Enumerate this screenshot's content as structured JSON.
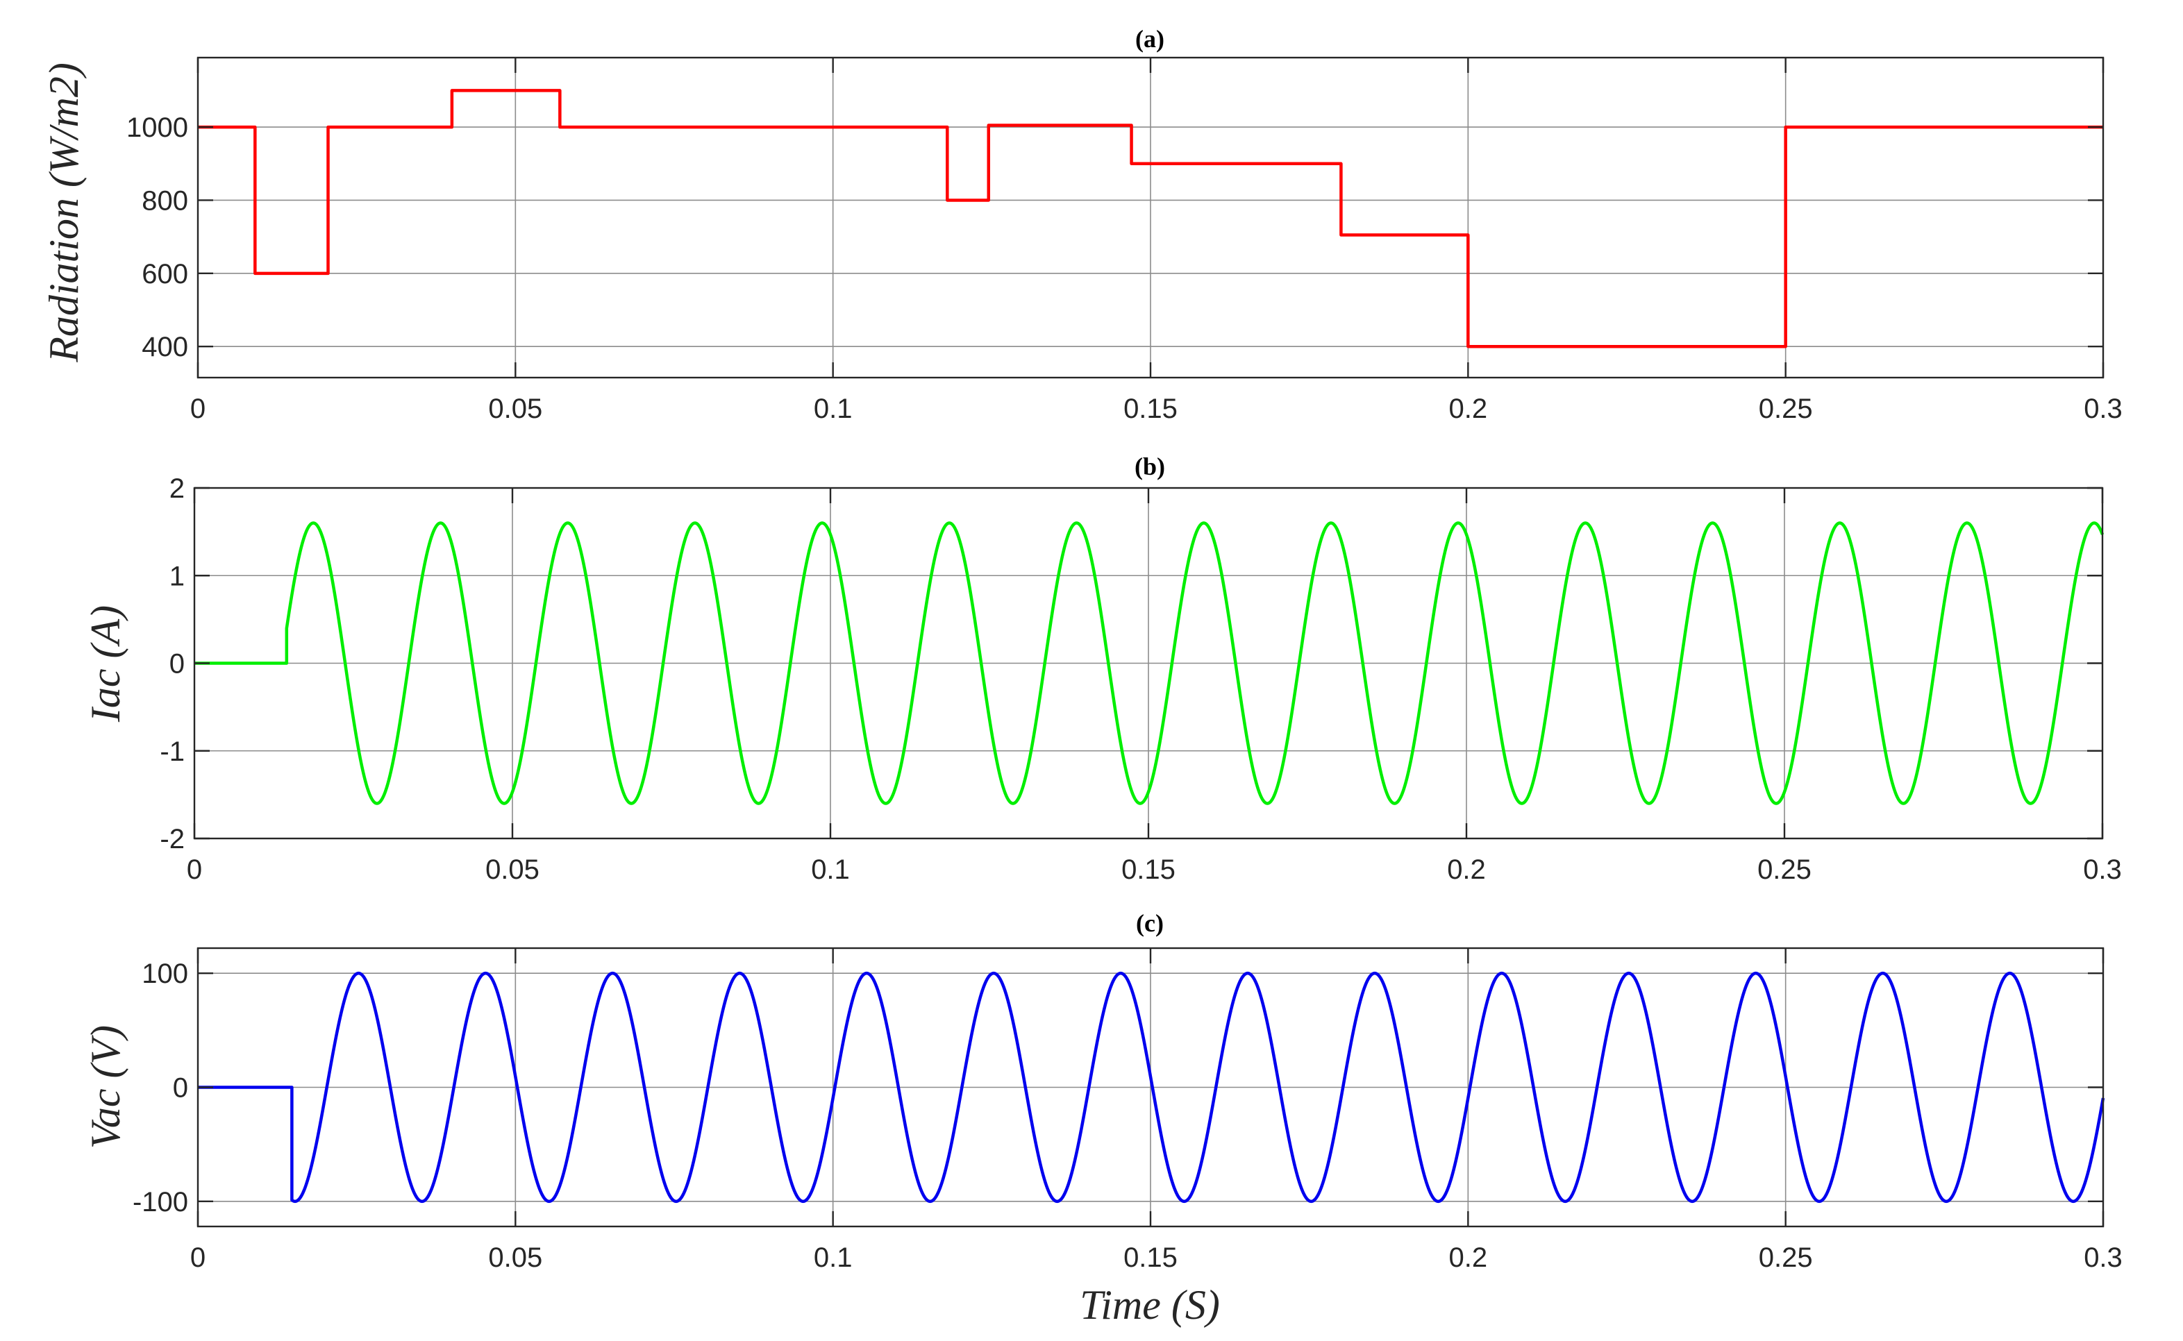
{
  "chart_data": [
    {
      "type": "line",
      "title": "(a)",
      "xlabel": "",
      "ylabel": "Radiation (W/m2)",
      "xlim": [
        0,
        0.3
      ],
      "ylim": [
        315,
        1190
      ],
      "xticks": [
        0,
        0.05,
        0.1,
        0.15,
        0.2,
        0.25,
        0.3
      ],
      "xtick_labels": [
        "0",
        "0.05",
        "0.1",
        "0.15",
        "0.2",
        "0.25",
        "0.3"
      ],
      "yticks": [
        400,
        600,
        800,
        1000
      ],
      "ytick_labels": [
        "400",
        "600",
        "800",
        "1000"
      ],
      "grid": true,
      "series": [
        {
          "name": "Radiation",
          "color": "#ff0000",
          "kind": "step",
          "points": [
            [
              0,
              1000
            ],
            [
              0.009,
              1000
            ],
            [
              0.009,
              600
            ],
            [
              0.0205,
              600
            ],
            [
              0.0205,
              1000
            ],
            [
              0.04,
              1000
            ],
            [
              0.04,
              1100
            ],
            [
              0.057,
              1100
            ],
            [
              0.057,
              1000
            ],
            [
              0.118,
              1000
            ],
            [
              0.118,
              800
            ],
            [
              0.1245,
              800
            ],
            [
              0.1245,
              1005
            ],
            [
              0.147,
              1005
            ],
            [
              0.147,
              900
            ],
            [
              0.18,
              900
            ],
            [
              0.18,
              705
            ],
            [
              0.2,
              705
            ],
            [
              0.2,
              400
            ],
            [
              0.25,
              400
            ],
            [
              0.25,
              1000
            ],
            [
              0.3,
              1000
            ]
          ]
        }
      ]
    },
    {
      "type": "line",
      "title": "(b)",
      "xlabel": "",
      "ylabel": "Iac (A)",
      "xlim": [
        0,
        0.3
      ],
      "ylim": [
        -2,
        2
      ],
      "xticks": [
        0,
        0.05,
        0.1,
        0.15,
        0.2,
        0.25,
        0.3
      ],
      "xtick_labels": [
        "0",
        "0.05",
        "0.1",
        "0.15",
        "0.2",
        "0.25",
        "0.3"
      ],
      "yticks": [
        -2,
        -1,
        0,
        1,
        2
      ],
      "ytick_labels": [
        "-2",
        "-1",
        "0",
        "1",
        "2"
      ],
      "grid": true,
      "series": [
        {
          "name": "Iac",
          "color": "#00ee00",
          "kind": "sine",
          "amplitude": 1.6,
          "frequency_hz": 50,
          "peak_time": 0.0187,
          "start_time": 0.0145,
          "value_before_start": 0,
          "t_end": 0.3
        }
      ]
    },
    {
      "type": "line",
      "title": "(c)",
      "xlabel": "Time (S)",
      "ylabel": "Vac (V)",
      "xlim": [
        0,
        0.3
      ],
      "ylim": [
        -122,
        122
      ],
      "xticks": [
        0,
        0.05,
        0.1,
        0.15,
        0.2,
        0.25,
        0.3
      ],
      "xtick_labels": [
        "0",
        "0.05",
        "0.1",
        "0.15",
        "0.2",
        "0.25",
        "0.3"
      ],
      "yticks": [
        -100,
        0,
        100
      ],
      "ytick_labels": [
        "-100",
        "0",
        "100"
      ],
      "grid": true,
      "series": [
        {
          "name": "Vac",
          "color": "#0000ee",
          "kind": "sine",
          "amplitude": 100,
          "frequency_hz": 50,
          "peak_time": 0.0253,
          "start_time": 0.0148,
          "value_before_start": 0,
          "t_end": 0.3
        }
      ]
    }
  ]
}
